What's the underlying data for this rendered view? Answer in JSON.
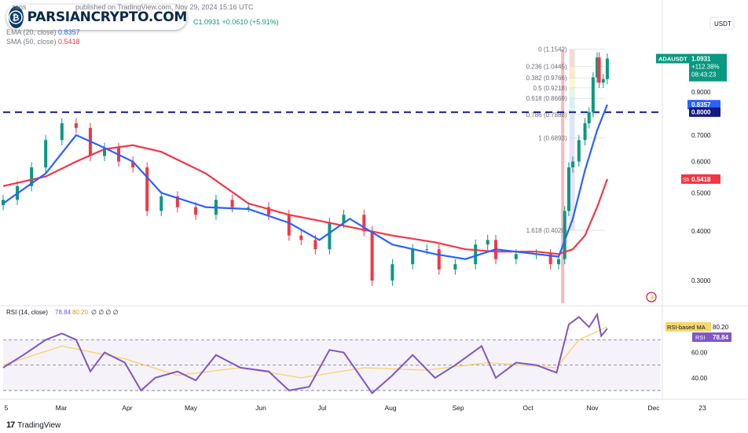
{
  "header": {
    "author_fragment": "rans",
    "published": "published on TradingView.com, Nov 29, 2024 15:16 UTC",
    "quote": "C1.0931",
    "change": "+0.0610 (+5.91%)",
    "ema_label": "EMA (20, close)",
    "ema_value": "0.8357",
    "sma_label": "SMA (50, close)",
    "sma_value": "0.5418"
  },
  "watermark": {
    "text": "PARSIANCRYPTO.COM"
  },
  "currency": "USDT",
  "price_axis": {
    "ticks": [
      {
        "v": 1.0,
        "label": "1.0000"
      },
      {
        "v": 0.9,
        "label": "0.9000"
      },
      {
        "v": 0.7,
        "label": "0.7000"
      },
      {
        "v": 0.6,
        "label": "0.6000"
      },
      {
        "v": 0.5,
        "label": "0.5000"
      },
      {
        "v": 0.4,
        "label": "0.4000"
      },
      {
        "v": 0.3,
        "label": "0.3000"
      }
    ]
  },
  "badges": {
    "ticker": "ADAUSDT",
    "price": "1.0931",
    "change_pct": "+112.38%",
    "countdown": "08:43:23",
    "ema_name": "EMA",
    "ema_value": "0.8357",
    "level_value": "0.8000",
    "sma_name": "SMA:MA",
    "sma_value": "0.5418"
  },
  "fib_levels": [
    {
      "ratio": "0",
      "label": "0 (1.1542)",
      "price": 1.1542
    },
    {
      "ratio": "0.236",
      "label": "0.236 (1.0445)",
      "price": 1.0445
    },
    {
      "ratio": "0.382",
      "label": "0.382 (0.9766)",
      "price": 0.9766
    },
    {
      "ratio": "0.5",
      "label": "0.5 (0.9218)",
      "price": 0.9218
    },
    {
      "ratio": "0.618",
      "label": "0.618 (0.8669)",
      "price": 0.8669
    },
    {
      "ratio": "0.786",
      "label": "0.786 (0.7888)",
      "price": 0.7888
    },
    {
      "ratio": "1",
      "label": "1 (0.6893)",
      "price": 0.6893
    },
    {
      "ratio": "1.618",
      "label": "1.618 (0.4020)",
      "price": 0.402
    }
  ],
  "rsi": {
    "header_label": "RSI (14, close)",
    "header_rsi": "78.84",
    "header_ma": "80.20",
    "header_zeros": "∅ ∅ ∅ ∅",
    "ticks": [
      {
        "v": 60,
        "label": "60.00"
      },
      {
        "v": 40,
        "label": "40.00"
      }
    ],
    "badge_ma_name": "RSI-based MA",
    "badge_ma_value": "80.20",
    "badge_rsi_name": "RSI",
    "badge_rsi_value": "78.84"
  },
  "time_axis": [
    "5",
    "Mar",
    "Apr",
    "May",
    "Jun",
    "Jul",
    "Aug",
    "Sep",
    "Oct",
    "Nov",
    "Dec",
    "23"
  ],
  "footer": {
    "brand": "TradingView"
  },
  "colors": {
    "up": "#089981",
    "down": "#f23645",
    "ema": "#2962ff",
    "sma": "#f23645",
    "rsi": "#7e57c2",
    "rsi_ma": "#f5d76e",
    "level": "#131a80",
    "fib": "#787b86"
  },
  "chart_data": [
    {
      "type": "candlestick",
      "symbol": "ADAUSDT",
      "timeframe": "1D",
      "level_line": 0.8,
      "ylim": [
        0.25,
        1.2
      ],
      "close_series": [
        {
          "x": "2024-02-05",
          "close": 0.48
        },
        {
          "x": "2024-02-12",
          "close": 0.52
        },
        {
          "x": "2024-02-19",
          "close": 0.58
        },
        {
          "x": "2024-02-26",
          "close": 0.68
        },
        {
          "x": "2024-03-05",
          "close": 0.75
        },
        {
          "x": "2024-03-12",
          "close": 0.73
        },
        {
          "x": "2024-03-19",
          "close": 0.62
        },
        {
          "x": "2024-03-26",
          "close": 0.65
        },
        {
          "x": "2024-04-02",
          "close": 0.6
        },
        {
          "x": "2024-04-09",
          "close": 0.58
        },
        {
          "x": "2024-04-16",
          "close": 0.45
        },
        {
          "x": "2024-04-23",
          "close": 0.49
        },
        {
          "x": "2024-05-01",
          "close": 0.46
        },
        {
          "x": "2024-05-10",
          "close": 0.44
        },
        {
          "x": "2024-05-20",
          "close": 0.48
        },
        {
          "x": "2024-05-28",
          "close": 0.46
        },
        {
          "x": "2024-06-05",
          "close": 0.46
        },
        {
          "x": "2024-06-15",
          "close": 0.44
        },
        {
          "x": "2024-06-25",
          "close": 0.39
        },
        {
          "x": "2024-07-01",
          "close": 0.38
        },
        {
          "x": "2024-07-08",
          "close": 0.36
        },
        {
          "x": "2024-07-15",
          "close": 0.42
        },
        {
          "x": "2024-07-22",
          "close": 0.44
        },
        {
          "x": "2024-08-01",
          "close": 0.4
        },
        {
          "x": "2024-08-05",
          "close": 0.3
        },
        {
          "x": "2024-08-15",
          "close": 0.33
        },
        {
          "x": "2024-08-25",
          "close": 0.36
        },
        {
          "x": "2024-09-01",
          "close": 0.36
        },
        {
          "x": "2024-09-07",
          "close": 0.32
        },
        {
          "x": "2024-09-15",
          "close": 0.33
        },
        {
          "x": "2024-09-25",
          "close": 0.37
        },
        {
          "x": "2024-10-01",
          "close": 0.38
        },
        {
          "x": "2024-10-05",
          "close": 0.34
        },
        {
          "x": "2024-10-15",
          "close": 0.35
        },
        {
          "x": "2024-10-25",
          "close": 0.35
        },
        {
          "x": "2024-11-01",
          "close": 0.33
        },
        {
          "x": "2024-11-05",
          "close": 0.34
        },
        {
          "x": "2024-11-08",
          "close": 0.45
        },
        {
          "x": "2024-11-10",
          "close": 0.58
        },
        {
          "x": "2024-11-12",
          "close": 0.6
        },
        {
          "x": "2024-11-15",
          "close": 0.68
        },
        {
          "x": "2024-11-18",
          "close": 0.75
        },
        {
          "x": "2024-11-20",
          "close": 0.8
        },
        {
          "x": "2024-11-22",
          "close": 0.98
        },
        {
          "x": "2024-11-24",
          "close": 1.1
        },
        {
          "x": "2024-11-25",
          "close": 0.95
        },
        {
          "x": "2024-11-27",
          "close": 0.97
        },
        {
          "x": "2024-11-29",
          "close": 1.0931
        }
      ],
      "ema20": [
        {
          "x": "2024-02-05",
          "y": 0.47
        },
        {
          "x": "2024-02-26",
          "y": 0.56
        },
        {
          "x": "2024-03-12",
          "y": 0.7
        },
        {
          "x": "2024-03-26",
          "y": 0.65
        },
        {
          "x": "2024-04-09",
          "y": 0.6
        },
        {
          "x": "2024-04-23",
          "y": 0.5
        },
        {
          "x": "2024-05-15",
          "y": 0.46
        },
        {
          "x": "2024-06-05",
          "y": 0.455
        },
        {
          "x": "2024-06-25",
          "y": 0.42
        },
        {
          "x": "2024-07-10",
          "y": 0.38
        },
        {
          "x": "2024-07-25",
          "y": 0.43
        },
        {
          "x": "2024-08-15",
          "y": 0.37
        },
        {
          "x": "2024-09-05",
          "y": 0.35
        },
        {
          "x": "2024-09-20",
          "y": 0.34
        },
        {
          "x": "2024-10-05",
          "y": 0.36
        },
        {
          "x": "2024-10-25",
          "y": 0.35
        },
        {
          "x": "2024-11-05",
          "y": 0.345
        },
        {
          "x": "2024-11-12",
          "y": 0.43
        },
        {
          "x": "2024-11-18",
          "y": 0.57
        },
        {
          "x": "2024-11-24",
          "y": 0.72
        },
        {
          "x": "2024-11-29",
          "y": 0.8357
        }
      ],
      "sma50": [
        {
          "x": "2024-02-05",
          "y": 0.52
        },
        {
          "x": "2024-02-26",
          "y": 0.55
        },
        {
          "x": "2024-03-12",
          "y": 0.6
        },
        {
          "x": "2024-03-26",
          "y": 0.645
        },
        {
          "x": "2024-04-09",
          "y": 0.66
        },
        {
          "x": "2024-04-23",
          "y": 0.635
        },
        {
          "x": "2024-05-15",
          "y": 0.56
        },
        {
          "x": "2024-06-05",
          "y": 0.47
        },
        {
          "x": "2024-06-25",
          "y": 0.44
        },
        {
          "x": "2024-07-10",
          "y": 0.425
        },
        {
          "x": "2024-07-25",
          "y": 0.41
        },
        {
          "x": "2024-08-15",
          "y": 0.39
        },
        {
          "x": "2024-09-05",
          "y": 0.375
        },
        {
          "x": "2024-09-20",
          "y": 0.36
        },
        {
          "x": "2024-10-05",
          "y": 0.355
        },
        {
          "x": "2024-10-25",
          "y": 0.355
        },
        {
          "x": "2024-11-05",
          "y": 0.35
        },
        {
          "x": "2024-11-12",
          "y": 0.36
        },
        {
          "x": "2024-11-18",
          "y": 0.39
        },
        {
          "x": "2024-11-24",
          "y": 0.46
        },
        {
          "x": "2024-11-29",
          "y": 0.5418
        }
      ]
    },
    {
      "type": "line",
      "indicator": "RSI (14, close)",
      "ylim": [
        25,
        95
      ],
      "bands": {
        "upper": 70,
        "middle": 50,
        "lower": 30
      },
      "rsi": [
        {
          "x": "2024-02-05",
          "y": 48
        },
        {
          "x": "2024-02-15",
          "y": 58
        },
        {
          "x": "2024-02-26",
          "y": 70
        },
        {
          "x": "2024-03-05",
          "y": 75
        },
        {
          "x": "2024-03-12",
          "y": 70
        },
        {
          "x": "2024-03-19",
          "y": 45
        },
        {
          "x": "2024-03-26",
          "y": 60
        },
        {
          "x": "2024-04-05",
          "y": 52
        },
        {
          "x": "2024-04-13",
          "y": 30
        },
        {
          "x": "2024-04-20",
          "y": 40
        },
        {
          "x": "2024-05-01",
          "y": 45
        },
        {
          "x": "2024-05-10",
          "y": 38
        },
        {
          "x": "2024-05-20",
          "y": 58
        },
        {
          "x": "2024-06-01",
          "y": 48
        },
        {
          "x": "2024-06-15",
          "y": 45
        },
        {
          "x": "2024-06-25",
          "y": 30
        },
        {
          "x": "2024-07-05",
          "y": 33
        },
        {
          "x": "2024-07-15",
          "y": 62
        },
        {
          "x": "2024-07-22",
          "y": 60
        },
        {
          "x": "2024-08-05",
          "y": 28
        },
        {
          "x": "2024-08-15",
          "y": 42
        },
        {
          "x": "2024-08-25",
          "y": 58
        },
        {
          "x": "2024-09-05",
          "y": 40
        },
        {
          "x": "2024-09-15",
          "y": 50
        },
        {
          "x": "2024-09-28",
          "y": 65
        },
        {
          "x": "2024-10-05",
          "y": 40
        },
        {
          "x": "2024-10-15",
          "y": 52
        },
        {
          "x": "2024-10-25",
          "y": 50
        },
        {
          "x": "2024-11-04",
          "y": 44
        },
        {
          "x": "2024-11-10",
          "y": 82
        },
        {
          "x": "2024-11-15",
          "y": 88
        },
        {
          "x": "2024-11-20",
          "y": 80
        },
        {
          "x": "2024-11-24",
          "y": 90
        },
        {
          "x": "2024-11-26",
          "y": 73
        },
        {
          "x": "2024-11-29",
          "y": 78.84
        }
      ],
      "rsi_ma": [
        {
          "x": "2024-02-05",
          "y": 50
        },
        {
          "x": "2024-03-05",
          "y": 65
        },
        {
          "x": "2024-04-05",
          "y": 55
        },
        {
          "x": "2024-05-01",
          "y": 42
        },
        {
          "x": "2024-06-01",
          "y": 48
        },
        {
          "x": "2024-07-01",
          "y": 40
        },
        {
          "x": "2024-08-01",
          "y": 48
        },
        {
          "x": "2024-09-01",
          "y": 46
        },
        {
          "x": "2024-10-01",
          "y": 52
        },
        {
          "x": "2024-11-04",
          "y": 48
        },
        {
          "x": "2024-11-15",
          "y": 70
        },
        {
          "x": "2024-11-29",
          "y": 80.2
        }
      ]
    }
  ]
}
